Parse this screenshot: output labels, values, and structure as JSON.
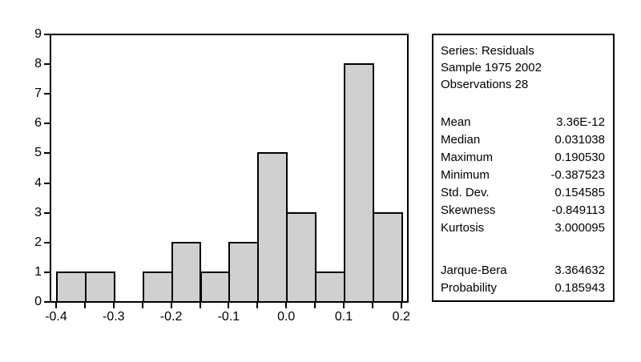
{
  "chart_data": {
    "type": "bar",
    "subtype": "histogram",
    "title": "",
    "xlabel": "",
    "ylabel": "",
    "bin_start": -0.4,
    "bin_width": 0.05,
    "values": [
      1,
      1,
      0,
      1,
      2,
      1,
      2,
      5,
      3,
      1,
      8,
      3
    ],
    "x_tick_step": 0.05,
    "x_label_values": [
      -0.4,
      -0.3,
      -0.2,
      -0.1,
      0.0,
      0.1,
      0.2
    ],
    "x_tick_labels": [
      "-0.4",
      "-0.3",
      "-0.2",
      "-0.1",
      "0.0",
      "0.1",
      "0.2"
    ],
    "y_ticks": [
      "0",
      "1",
      "2",
      "3",
      "4",
      "5",
      "6",
      "7",
      "8",
      "9"
    ],
    "xlim": [
      -0.4,
      0.2
    ],
    "ylim": [
      0,
      9
    ],
    "grid": false,
    "legend": false,
    "bar_fill_color": "#d0d0d0",
    "bar_border_color": "#000000"
  },
  "stats_box": {
    "header_lines": [
      "Series: Residuals",
      "Sample 1975 2002",
      "Observations 28"
    ],
    "stats": [
      {
        "label": "Mean",
        "value": "3.36E-12"
      },
      {
        "label": "Median",
        "value": "0.031038"
      },
      {
        "label": "Maximum",
        "value": "0.190530"
      },
      {
        "label": "Minimum",
        "value": "-0.387523"
      },
      {
        "label": "Std. Dev.",
        "value": "0.154585"
      },
      {
        "label": "Skewness",
        "value": "-0.849113"
      },
      {
        "label": "Kurtosis",
        "value": "3.000095"
      }
    ],
    "tests": [
      {
        "label": "Jarque-Bera",
        "value": "3.364632"
      },
      {
        "label": "Probability",
        "value": "0.185943"
      }
    ]
  }
}
